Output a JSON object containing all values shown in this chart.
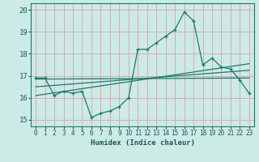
{
  "xlabel": "Humidex (Indice chaleur)",
  "ylabel": "",
  "bg_color": "#cceae6",
  "grid_color": "#ddaaaa",
  "line_color": "#1a7a6e",
  "xlim": [
    -0.5,
    23.5
  ],
  "ylim": [
    14.7,
    20.3
  ],
  "xticks": [
    0,
    1,
    2,
    3,
    4,
    5,
    6,
    7,
    8,
    9,
    10,
    11,
    12,
    13,
    14,
    15,
    16,
    17,
    18,
    19,
    20,
    21,
    22,
    23
  ],
  "yticks": [
    15,
    16,
    17,
    18,
    19,
    20
  ],
  "main_x": [
    0,
    1,
    2,
    3,
    4,
    5,
    6,
    7,
    8,
    9,
    10,
    11,
    12,
    13,
    14,
    15,
    16,
    17,
    18,
    19,
    20,
    21,
    22,
    23
  ],
  "main_y": [
    16.9,
    16.9,
    16.1,
    16.3,
    16.2,
    16.3,
    15.1,
    15.3,
    15.4,
    15.6,
    16.0,
    18.2,
    18.2,
    18.5,
    18.8,
    19.1,
    19.9,
    19.5,
    17.5,
    17.8,
    17.4,
    17.3,
    16.8,
    16.2
  ],
  "trend1_x": [
    0,
    23
  ],
  "trend1_y": [
    16.85,
    16.9
  ],
  "trend2_x": [
    0,
    23
  ],
  "trend2_y": [
    16.1,
    17.55
  ],
  "trend3_x": [
    0,
    23
  ],
  "trend3_y": [
    16.5,
    17.25
  ]
}
